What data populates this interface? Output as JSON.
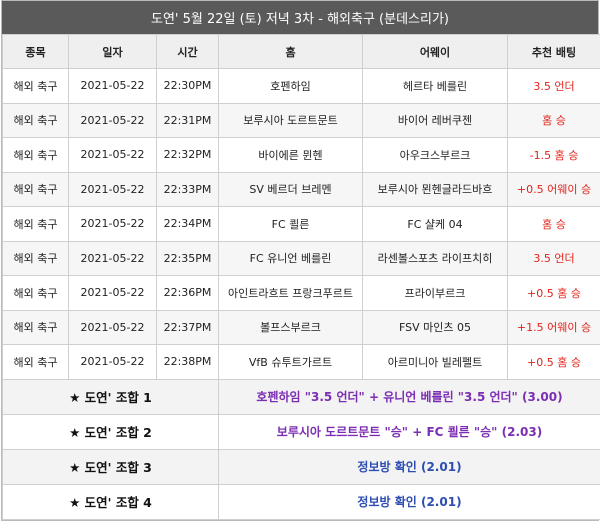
{
  "title": "도연' 5월 22일 (토) 저녁 3차 - 해외축구 (분데스리가)",
  "columns": [
    "종목",
    "일자",
    "시간",
    "홈",
    "어웨이",
    "추천 배팅"
  ],
  "rows": [
    {
      "sport": "해외 축구",
      "date": "2021-05-22",
      "time": "22:30PM",
      "home": "호펜하임",
      "away": "헤르타 베를린",
      "pick": "3.5 언더"
    },
    {
      "sport": "해외 축구",
      "date": "2021-05-22",
      "time": "22:31PM",
      "home": "보루시아 도르트문트",
      "away": "바이어 레버쿠젠",
      "pick": "홈 승"
    },
    {
      "sport": "해외 축구",
      "date": "2021-05-22",
      "time": "22:32PM",
      "home": "바이에른 뮌헨",
      "away": "아우크스부르크",
      "pick": "-1.5 홈 승"
    },
    {
      "sport": "해외 축구",
      "date": "2021-05-22",
      "time": "22:33PM",
      "home": "SV 베르더 브레멘",
      "away": "보루시아 묀헨글라드바흐",
      "pick": "+0.5 어웨이 승"
    },
    {
      "sport": "해외 축구",
      "date": "2021-05-22",
      "time": "22:34PM",
      "home": "FC 쾰른",
      "away": "FC 샬케 04",
      "pick": "홈 승"
    },
    {
      "sport": "해외 축구",
      "date": "2021-05-22",
      "time": "22:35PM",
      "home": "FC 유니언 베를린",
      "away": "라센볼스포츠 라이프치히",
      "pick": "3.5 언더"
    },
    {
      "sport": "해외 축구",
      "date": "2021-05-22",
      "time": "22:36PM",
      "home": "아인트라흐트 프랑크푸르트",
      "away": "프라이부르크",
      "pick": "+0.5 홈 승"
    },
    {
      "sport": "해외 축구",
      "date": "2021-05-22",
      "time": "22:37PM",
      "home": "볼프스부르크",
      "away": "FSV 마인츠 05",
      "pick": "+1.5 어웨이 승"
    },
    {
      "sport": "해외 축구",
      "date": "2021-05-22",
      "time": "22:38PM",
      "home": "VfB 슈투트가르트",
      "away": "아르미니아 빌레펠트",
      "pick": "+0.5 홈 승"
    }
  ],
  "combos": [
    {
      "label": "★ 도연' 조합 1",
      "value": "호펜하임 \"3.5 언더\" + 유니언 베를린 \"3.5 언더\" (3.00)"
    },
    {
      "label": "★ 도연' 조합 2",
      "value": "보루시아 도르트문트 \"승\" + FC 쾰른 \"승\" (2.03)"
    },
    {
      "label": "★ 도연' 조합 3",
      "value": "정보방 확인 (2.01)"
    },
    {
      "label": "★ 도연' 조합 4",
      "value": "정보방 확인 (2.01)"
    }
  ],
  "colors": {
    "title_bg": "#5a5a5a",
    "pick": "#e2231a",
    "combo_purple": "#7b2db3",
    "combo_blue": "#2d4db3"
  }
}
